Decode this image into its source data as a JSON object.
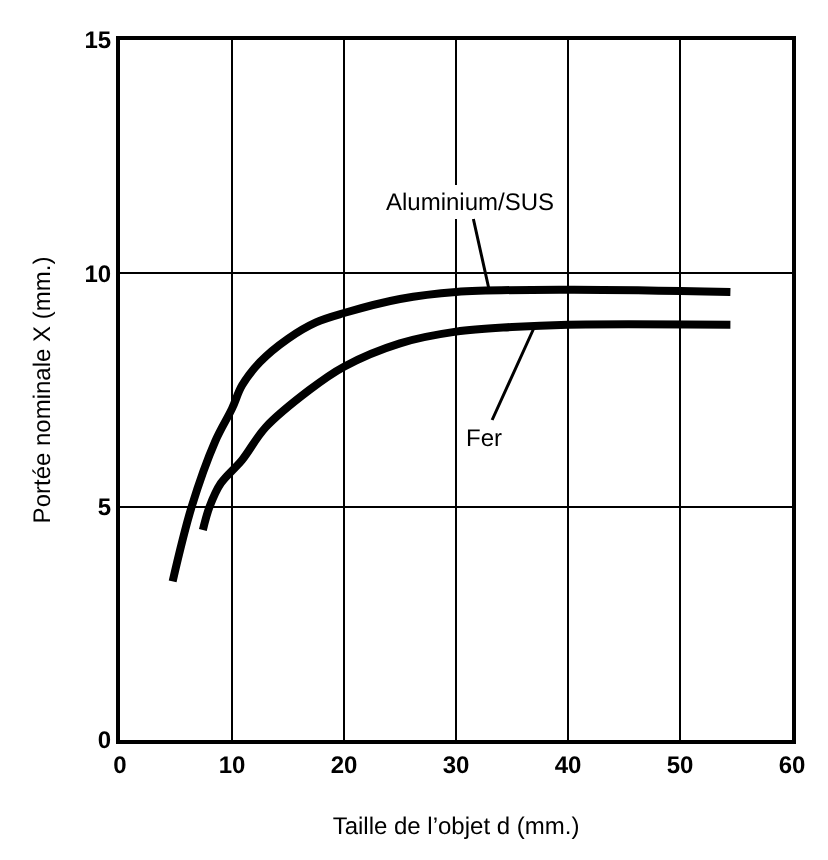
{
  "chart_data": {
    "type": "line",
    "xlabel": "Taille de l’objet d (mm.)",
    "ylabel": "Portée nominale X (mm.)",
    "xlim": [
      0,
      60
    ],
    "xticks": [
      0,
      10,
      20,
      30,
      40,
      50,
      60
    ],
    "ylim": [
      0,
      15
    ],
    "yticks": [
      0,
      5,
      10,
      15
    ],
    "grid": true,
    "marker": "none",
    "line_style": "solid",
    "series": [
      {
        "color": "#000000",
        "x": [
          4.7,
          6.4,
          8.5,
          10,
          10.9,
          12.5,
          15,
          17.5,
          20,
          25,
          30,
          40,
          54.5
        ],
        "values": [
          3.4,
          5,
          6.4,
          7.1,
          7.6,
          8.1,
          8.6,
          8.95,
          9.15,
          9.45,
          9.6,
          9.65,
          9.6
        ]
      },
      {
        "color": "#000000",
        "x": [
          7.4,
          8,
          9,
          10.9,
          13,
          16.9,
          20,
          25,
          30,
          35,
          40,
          54.5
        ],
        "values": [
          4.5,
          5,
          5.5,
          6.0,
          6.7,
          7.5,
          8.0,
          8.5,
          8.75,
          8.85,
          8.9,
          8.9
        ]
      }
    ],
    "annotations": [
      {
        "text": "Aluminium/SUS",
        "x": 33,
        "y": 9.6
      },
      {
        "text": "Fer",
        "x": 37,
        "y": 8.85
      }
    ]
  }
}
